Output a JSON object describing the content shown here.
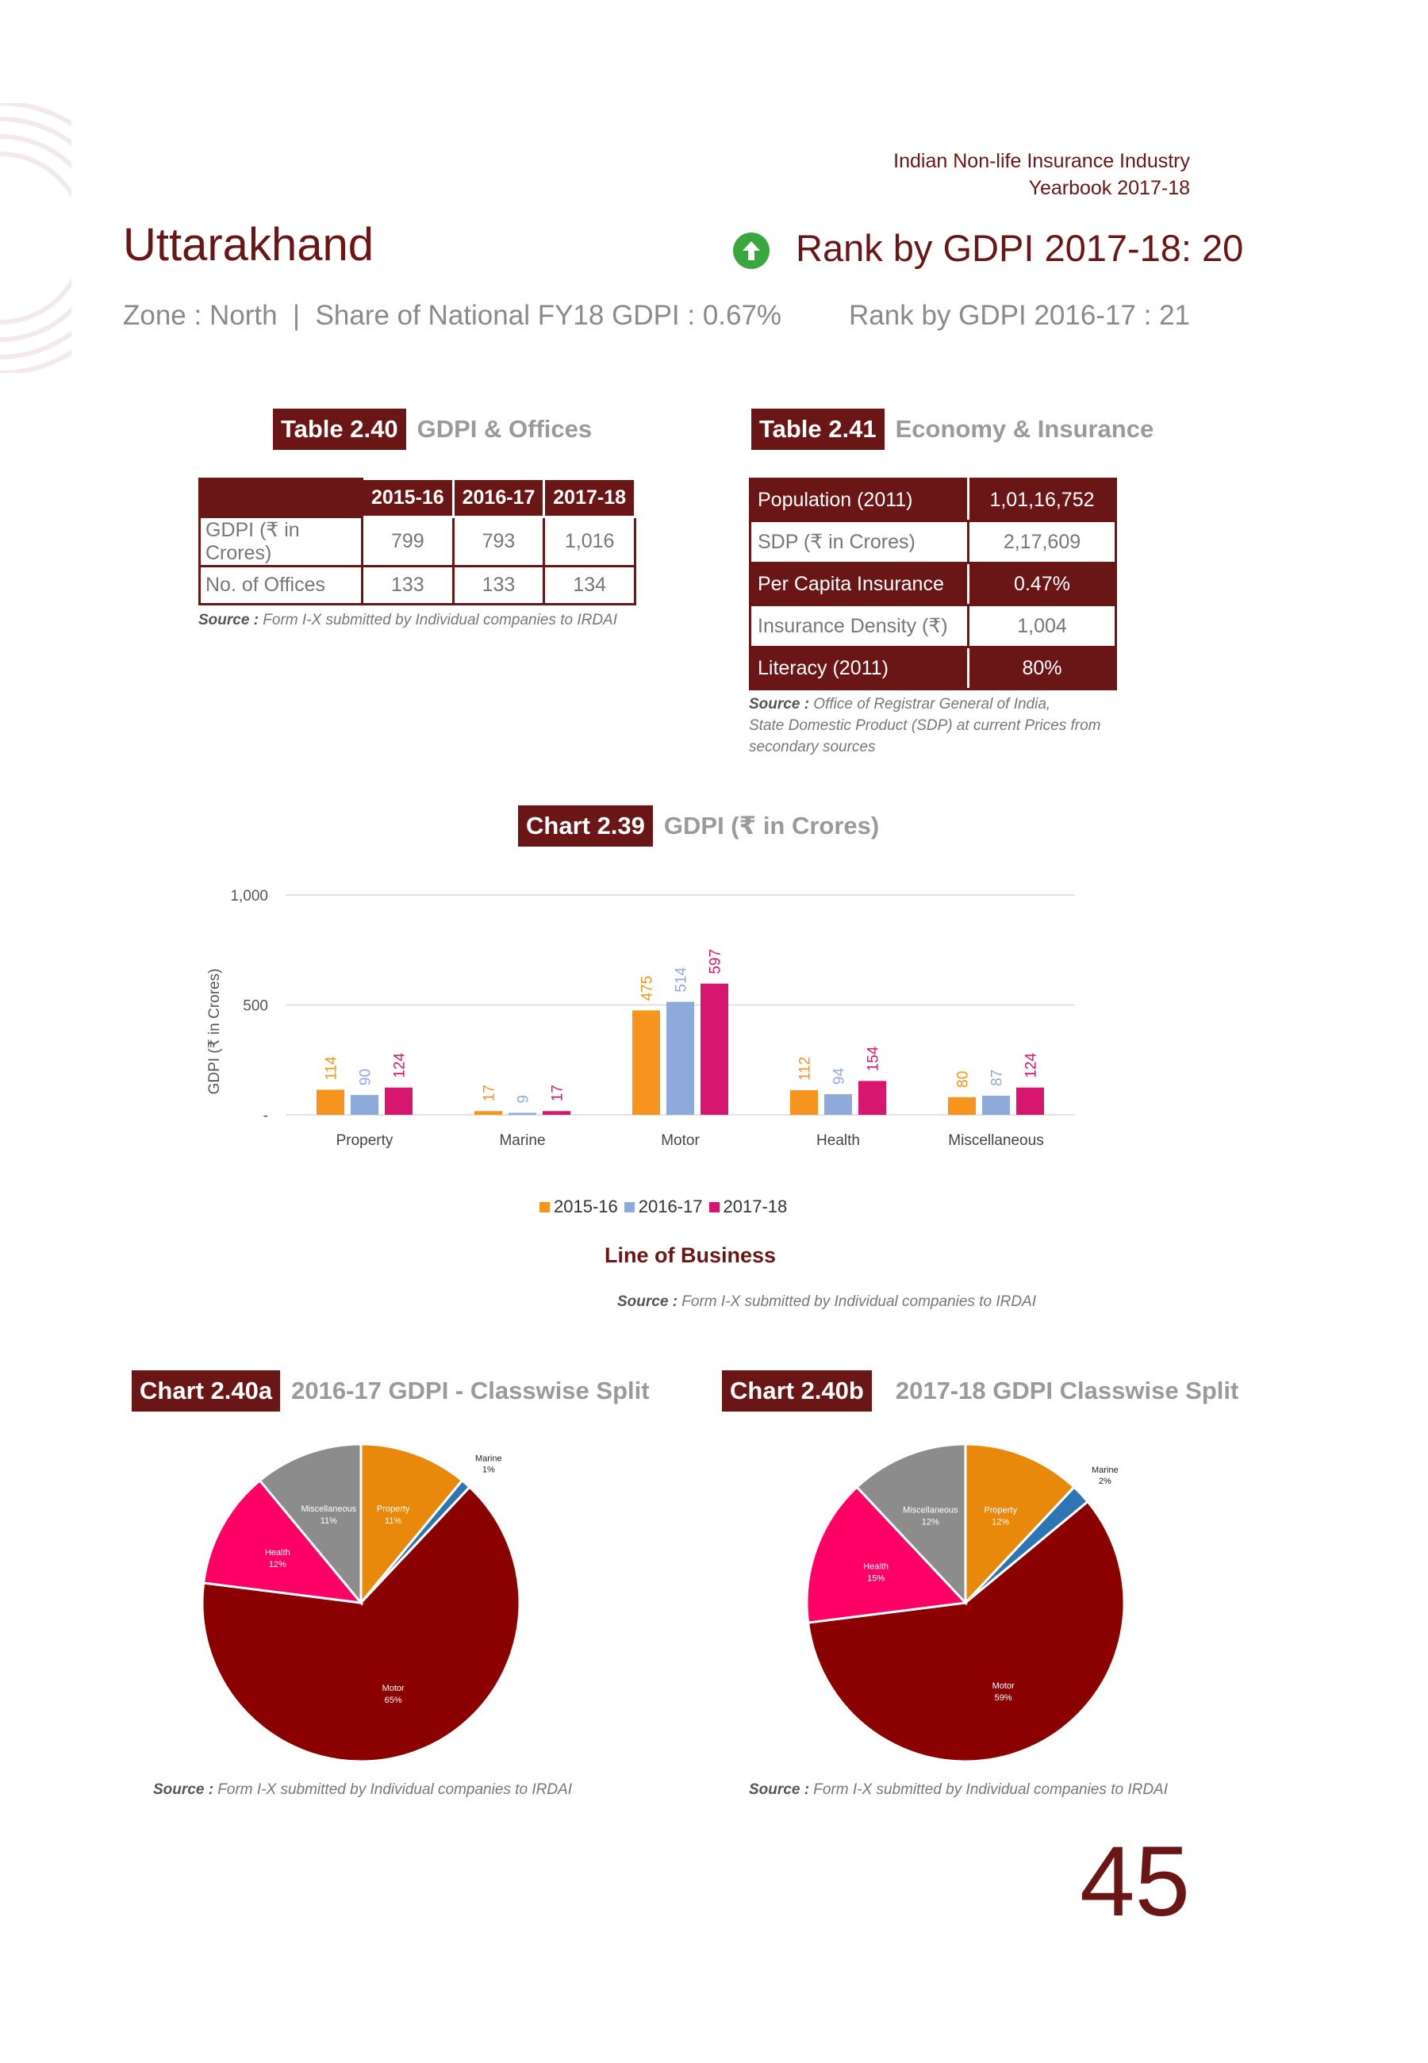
{
  "header": {
    "line1": "Indian Non-life Insurance Industry",
    "line2": "Yearbook 2017-18"
  },
  "state": {
    "name": "Uttarakhand",
    "rank_current": "Rank by GDPI 2017-18: 20",
    "zone_share": "Zone : North  |  Share of National FY18 GDPI : 0.67%",
    "rank_previous": "Rank by GDPI 2016-17 : 21",
    "rank_icon": "arrow-up-icon",
    "rank_icon_color": "#3aa63e"
  },
  "table_2_40": {
    "tag": "Table 2.40",
    "title": "GDPI & Offices",
    "columns": [
      "2015-16",
      "2016-17",
      "2017-18"
    ],
    "rows": [
      {
        "label": "GDPI (₹ in Crores)",
        "values": [
          "799",
          "793",
          "1,016"
        ]
      },
      {
        "label": "No. of Offices",
        "values": [
          "133",
          "133",
          "134"
        ]
      }
    ],
    "source_label": "Source :",
    "source_text": " Form I-X submitted by Individual companies to IRDAI"
  },
  "table_2_41": {
    "tag": "Table 2.41",
    "title": "Economy & Insurance",
    "rows": [
      {
        "label": "Population (2011)",
        "value": "1,01,16,752"
      },
      {
        "label": "SDP (₹ in Crores)",
        "value": "2,17,609"
      },
      {
        "label": "Per Capita Insurance",
        "value": "0.47%"
      },
      {
        "label": "Insurance Density (₹)",
        "value": "1,004"
      },
      {
        "label": "Literacy (2011)",
        "value": "80%"
      }
    ],
    "source_label": "Source :",
    "source_line1": " Office of Registrar General of India,",
    "source_line2": "State Domestic Product (SDP) at current Prices from",
    "source_line3": "secondary sources"
  },
  "chart_2_39": {
    "tag": "Chart 2.39",
    "title": "GDPI (₹ in Crores)",
    "source_label": "Source :",
    "source_text": " Form I-X submitted by Individual companies to IRDAI"
  },
  "chart_2_40a": {
    "tag": "Chart 2.40a",
    "title": "2016-17 GDPI - Classwise Split",
    "source_label": "Source :",
    "source_text": " Form I-X submitted by Individual companies to IRDAI"
  },
  "chart_2_40b": {
    "tag": "Chart 2.40b",
    "title": "2017-18 GDPI Classwise Split",
    "source_label": "Source :",
    "source_text": " Form I-X submitted by Individual companies to IRDAI"
  },
  "chart_data": [
    {
      "type": "bar",
      "categories": [
        "Property",
        "Marine",
        "Motor",
        "Health",
        "Miscellaneous"
      ],
      "series": [
        {
          "name": "2015-16",
          "values": [
            114,
            17,
            475,
            112,
            80
          ],
          "color": "#f7941d"
        },
        {
          "name": "2016-17",
          "values": [
            90,
            9,
            514,
            94,
            87
          ],
          "color": "#8eaadb"
        },
        {
          "name": "2017-18",
          "values": [
            124,
            17,
            597,
            154,
            124
          ],
          "color": "#d6166f"
        }
      ],
      "ylabel": "GDPI (₹ in Crores)",
      "xlabel": "Line of Business",
      "yticks": [
        "-",
        "500",
        "1,000"
      ],
      "ylim": [
        0,
        1000
      ],
      "grid": true,
      "legend": "bottom"
    },
    {
      "type": "pie",
      "slices": [
        {
          "label": "Property",
          "pct": "11%",
          "value": 11,
          "color": "#e8890c"
        },
        {
          "label": "Marine",
          "pct": "1%",
          "value": 1,
          "color": "#2e75b6"
        },
        {
          "label": "Motor",
          "pct": "65%",
          "value": 65,
          "color": "#8b0000"
        },
        {
          "label": "Health",
          "pct": "12%",
          "value": 12,
          "color": "#ff0066"
        },
        {
          "label": "Miscellaneous",
          "pct": "11%",
          "value": 11,
          "color": "#8c8c8c"
        }
      ]
    },
    {
      "type": "pie",
      "slices": [
        {
          "label": "Property",
          "pct": "12%",
          "value": 12,
          "color": "#e8890c"
        },
        {
          "label": "Marine",
          "pct": "2%",
          "value": 2,
          "color": "#2e75b6"
        },
        {
          "label": "Motor",
          "pct": "59%",
          "value": 59,
          "color": "#8b0000"
        },
        {
          "label": "Health",
          "pct": "15%",
          "value": 15,
          "color": "#ff0066"
        },
        {
          "label": "Miscellaneous",
          "pct": "12%",
          "value": 12,
          "color": "#8c8c8c"
        }
      ]
    }
  ],
  "page_number": "45"
}
